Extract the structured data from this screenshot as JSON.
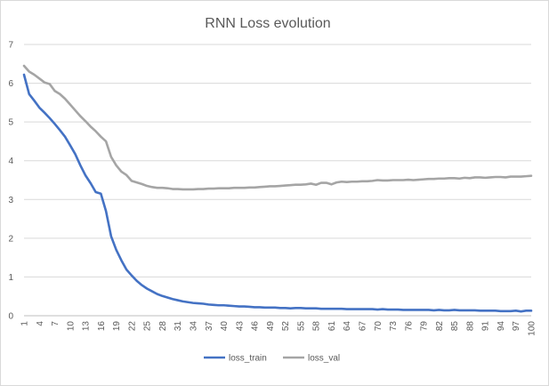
{
  "chart_data": {
    "type": "line",
    "title": "RNN Loss evolution",
    "xlabel": "",
    "ylabel": "",
    "ylim": [
      0,
      7
    ],
    "yticks": [
      "0",
      "1",
      "2",
      "3",
      "4",
      "5",
      "6",
      "7"
    ],
    "grid": true,
    "legend_position": "bottom",
    "x_tick_labels": [
      "1",
      "4",
      "7",
      "10",
      "13",
      "16",
      "19",
      "22",
      "25",
      "28",
      "31",
      "34",
      "37",
      "40",
      "43",
      "46",
      "49",
      "52",
      "55",
      "58",
      "61",
      "64",
      "67",
      "70",
      "73",
      "76",
      "79",
      "82",
      "85",
      "88",
      "91",
      "94",
      "97",
      "100"
    ],
    "x_start": 1,
    "x_end": 100,
    "series": [
      {
        "name": "loss_train",
        "color": "#4472c4",
        "values": [
          6.22,
          5.72,
          5.55,
          5.37,
          5.24,
          5.1,
          4.95,
          4.79,
          4.62,
          4.4,
          4.17,
          3.88,
          3.62,
          3.42,
          3.19,
          3.15,
          2.7,
          2.05,
          1.7,
          1.43,
          1.19,
          1.04,
          0.9,
          0.79,
          0.7,
          0.63,
          0.56,
          0.51,
          0.47,
          0.43,
          0.4,
          0.37,
          0.35,
          0.33,
          0.32,
          0.31,
          0.29,
          0.28,
          0.27,
          0.27,
          0.26,
          0.25,
          0.24,
          0.24,
          0.23,
          0.22,
          0.22,
          0.21,
          0.21,
          0.21,
          0.2,
          0.2,
          0.19,
          0.2,
          0.2,
          0.19,
          0.19,
          0.19,
          0.18,
          0.18,
          0.18,
          0.18,
          0.18,
          0.17,
          0.17,
          0.17,
          0.17,
          0.17,
          0.17,
          0.16,
          0.17,
          0.16,
          0.16,
          0.16,
          0.15,
          0.15,
          0.15,
          0.15,
          0.15,
          0.15,
          0.14,
          0.15,
          0.14,
          0.14,
          0.15,
          0.14,
          0.14,
          0.14,
          0.14,
          0.13,
          0.13,
          0.13,
          0.13,
          0.12,
          0.12,
          0.12,
          0.13,
          0.11,
          0.13,
          0.13
        ]
      },
      {
        "name": "loss_val",
        "color": "#a5a5a5",
        "values": [
          6.45,
          6.3,
          6.22,
          6.12,
          6.02,
          5.98,
          5.8,
          5.72,
          5.6,
          5.45,
          5.3,
          5.15,
          5.02,
          4.88,
          4.76,
          4.62,
          4.5,
          4.1,
          3.88,
          3.72,
          3.63,
          3.48,
          3.44,
          3.4,
          3.35,
          3.32,
          3.3,
          3.3,
          3.29,
          3.27,
          3.27,
          3.26,
          3.26,
          3.26,
          3.27,
          3.27,
          3.28,
          3.28,
          3.29,
          3.29,
          3.29,
          3.3,
          3.3,
          3.3,
          3.31,
          3.31,
          3.32,
          3.33,
          3.34,
          3.34,
          3.35,
          3.36,
          3.37,
          3.38,
          3.38,
          3.39,
          3.41,
          3.38,
          3.43,
          3.43,
          3.39,
          3.44,
          3.46,
          3.45,
          3.46,
          3.46,
          3.47,
          3.47,
          3.48,
          3.5,
          3.49,
          3.49,
          3.5,
          3.5,
          3.5,
          3.51,
          3.5,
          3.51,
          3.52,
          3.53,
          3.53,
          3.54,
          3.54,
          3.55,
          3.55,
          3.54,
          3.56,
          3.55,
          3.57,
          3.57,
          3.56,
          3.57,
          3.58,
          3.58,
          3.57,
          3.59,
          3.59,
          3.59,
          3.6,
          3.61
        ]
      }
    ]
  }
}
